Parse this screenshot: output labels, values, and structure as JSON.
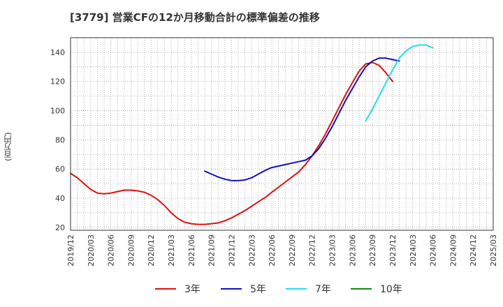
{
  "chart_data": {
    "type": "line",
    "title": "[3779]  営業CFの12か月移動合計の標準偏差の推移",
    "ylabel": "(百万円)",
    "xlabel": "",
    "ylim": [
      18,
      150
    ],
    "yticks": [
      20,
      40,
      60,
      80,
      100,
      120,
      140
    ],
    "x_tick_labels": [
      "2019/12",
      "2020/03",
      "2020/06",
      "2020/09",
      "2020/12",
      "2021/03",
      "2021/06",
      "2021/09",
      "2021/12",
      "2022/03",
      "2022/06",
      "2022/09",
      "2022/12",
      "2023/03",
      "2023/06",
      "2023/09",
      "2023/12",
      "2024/03",
      "2024/06",
      "2024/09",
      "2024/12",
      "2025/03"
    ],
    "grid": true,
    "legend_position": "bottom",
    "series": [
      {
        "name": "3年",
        "color": "#dd1111",
        "start": "2019/12",
        "values": [
          57,
          54,
          50,
          46,
          43.5,
          43,
          43.5,
          44.5,
          45.5,
          45.5,
          45,
          44,
          42,
          39,
          35,
          30,
          26,
          23.5,
          22.5,
          22,
          22,
          22.5,
          23,
          24.5,
          26.5,
          29,
          31.5,
          34.5,
          37.5,
          40.5,
          44,
          47.5,
          51,
          54.5,
          58,
          63,
          69,
          76,
          84,
          93,
          102,
          111,
          119,
          127,
          132,
          133,
          131,
          126,
          120
        ]
      },
      {
        "name": "5年",
        "color": "#1111bb",
        "start": "2021/08",
        "values": [
          58.5,
          56.5,
          54.5,
          53,
          52,
          52,
          52.5,
          54,
          56.5,
          59,
          61,
          62,
          63,
          64,
          65,
          66,
          69,
          74,
          81,
          89,
          98,
          107,
          115,
          123,
          130,
          134,
          136,
          136,
          135,
          134
        ]
      },
      {
        "name": "7年",
        "color": "#22ddee",
        "start": "2023/08",
        "values": [
          93,
          101,
          110,
          119,
          128,
          136,
          141,
          144,
          145,
          145,
          143
        ]
      },
      {
        "name": "10年",
        "color": "#118811",
        "start": "2024/09",
        "values": []
      }
    ]
  }
}
